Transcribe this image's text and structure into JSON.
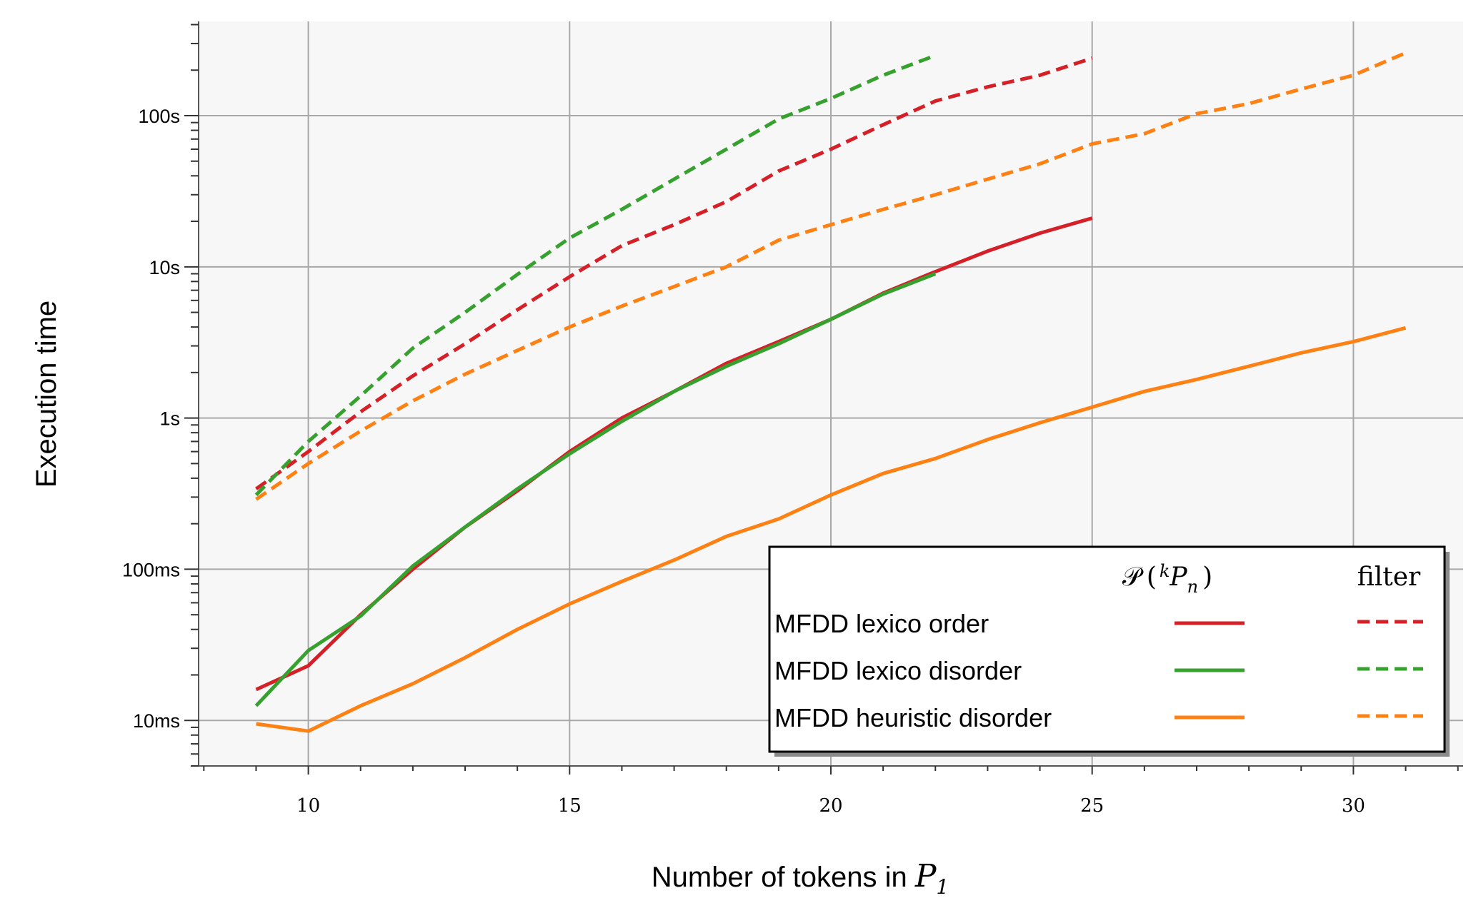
{
  "chart_data": {
    "type": "line",
    "title": "",
    "xlabel": "Number of tokens in ",
    "xlabel_math": "P",
    "xlabel_sub": "1",
    "ylabel": "Execution time",
    "yscale": "log",
    "xlim": [
      7.9,
      32.1
    ],
    "ylim": [
      0.005,
      420
    ],
    "xticks": [
      10,
      15,
      20,
      25,
      30
    ],
    "xtick_labels": [
      "10",
      "15",
      "20",
      "25",
      "30"
    ],
    "yticks": [
      0.01,
      0.1,
      1,
      10,
      100
    ],
    "ytick_labels": [
      "10ms",
      "100ms",
      "1s",
      "10s",
      "100s"
    ],
    "grid": true,
    "legend_placement": "bottom-right",
    "legend": {
      "col1_header_script": "𝒫",
      "col1_header_open": "(",
      "col1_header_sup": "k",
      "col1_header_var": "P",
      "col1_header_sub": "n",
      "col1_header_close": ")",
      "col2_header": "filter",
      "rows": [
        "MFDD lexico order",
        "MFDD lexico disorder",
        "MFDD heuristic disorder"
      ]
    },
    "series": [
      {
        "group": "MFDD lexico order",
        "style": "solid",
        "color": "#d62027",
        "x": [
          9,
          10,
          11,
          12,
          13,
          14,
          15,
          16,
          17,
          18,
          19,
          20,
          21,
          22,
          23,
          24,
          25
        ],
        "y": [
          0.016,
          0.023,
          0.05,
          0.1,
          0.19,
          0.33,
          0.6,
          1.0,
          1.5,
          2.3,
          3.2,
          4.5,
          6.7,
          9.3,
          12.7,
          16.7,
          21
        ]
      },
      {
        "group": "MFDD lexico order",
        "style": "dashed",
        "color": "#d62027",
        "x": [
          9,
          10,
          11,
          12,
          13,
          14,
          15,
          16,
          17,
          18,
          19,
          20,
          21,
          22,
          23,
          24,
          25
        ],
        "y": [
          0.34,
          0.6,
          1.1,
          1.9,
          3.1,
          5.2,
          8.6,
          13.8,
          19,
          27,
          43,
          60,
          87,
          125,
          155,
          185,
          240
        ]
      },
      {
        "group": "MFDD lexico disorder",
        "style": "solid",
        "color": "#36a12e",
        "x": [
          9,
          10,
          11,
          12,
          13,
          14,
          15,
          16,
          17,
          18,
          19,
          20,
          21,
          22
        ],
        "y": [
          0.0125,
          0.029,
          0.049,
          0.105,
          0.19,
          0.34,
          0.58,
          0.95,
          1.5,
          2.2,
          3.1,
          4.5,
          6.6,
          9.0
        ]
      },
      {
        "group": "MFDD lexico disorder",
        "style": "dashed",
        "color": "#36a12e",
        "x": [
          9,
          10,
          11,
          12,
          13,
          14,
          15,
          16,
          17,
          18,
          19,
          20,
          21,
          22
        ],
        "y": [
          0.31,
          0.7,
          1.4,
          2.9,
          5.0,
          8.9,
          15.5,
          24,
          38,
          60,
          95,
          130,
          185,
          250
        ]
      },
      {
        "group": "MFDD heuristic disorder",
        "style": "solid",
        "color": "#ff8113",
        "x": [
          9,
          10,
          11,
          12,
          13,
          14,
          15,
          16,
          17,
          18,
          19,
          20,
          21,
          22,
          23,
          24,
          25,
          26,
          27,
          28,
          29,
          30,
          31
        ],
        "y": [
          0.0095,
          0.0085,
          0.0125,
          0.0175,
          0.026,
          0.04,
          0.059,
          0.083,
          0.115,
          0.165,
          0.215,
          0.31,
          0.43,
          0.54,
          0.72,
          0.93,
          1.18,
          1.5,
          1.8,
          2.2,
          2.7,
          3.2,
          3.95
        ]
      },
      {
        "group": "MFDD heuristic disorder",
        "style": "dashed",
        "color": "#ff8113",
        "x": [
          9,
          10,
          11,
          12,
          13,
          14,
          15,
          16,
          17,
          18,
          19,
          20,
          21,
          22,
          23,
          24,
          25,
          26,
          27,
          28,
          29,
          30,
          31
        ],
        "y": [
          0.29,
          0.5,
          0.82,
          1.3,
          1.95,
          2.8,
          4.0,
          5.5,
          7.4,
          10,
          15,
          19,
          24,
          30,
          38,
          48,
          65,
          76,
          103,
          120,
          150,
          185,
          260
        ]
      }
    ]
  }
}
